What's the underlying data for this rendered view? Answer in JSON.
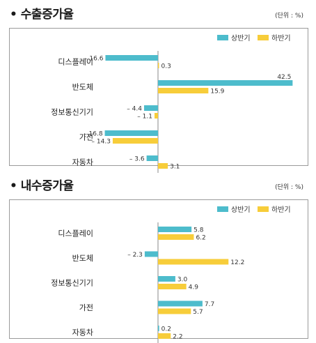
{
  "chart_data": [
    {
      "type": "bar",
      "orientation": "horizontal",
      "title": "• 수출증가율",
      "unit": "(단위 : %)",
      "categories": [
        "디스플레이",
        "반도체",
        "정보통신기기",
        "가전",
        "자동차"
      ],
      "series": [
        {
          "name": "상반기",
          "color": "#4dbccc",
          "values": [
            -16.6,
            42.5,
            -4.4,
            -16.8,
            -3.6
          ],
          "labels": [
            "– 16.6",
            "42.5",
            "– 4.4",
            "– 16.8",
            "– 3.6"
          ]
        },
        {
          "name": "하반기",
          "color": "#f7cd3a",
          "values": [
            0.3,
            15.9,
            -1.1,
            -14.3,
            3.1
          ],
          "labels": [
            "0.3",
            "15.9",
            "– 1.1",
            "– 14.3",
            "3.1"
          ]
        }
      ],
      "legend": "top-right",
      "grid": false
    },
    {
      "type": "bar",
      "orientation": "horizontal",
      "title": "• 내수증가율",
      "unit": "(단위 : %)",
      "categories": [
        "디스플레이",
        "반도체",
        "정보통신기기",
        "가전",
        "자동차"
      ],
      "series": [
        {
          "name": "상반기",
          "color": "#4dbccc",
          "values": [
            5.8,
            -2.3,
            3.0,
            7.7,
            0.2
          ],
          "labels": [
            "5.8",
            "– 2.3",
            "3.0",
            "7.7",
            "0.2"
          ]
        },
        {
          "name": "하반기",
          "color": "#f7cd3a",
          "values": [
            6.2,
            12.2,
            4.9,
            5.7,
            2.2
          ],
          "labels": [
            "6.2",
            "12.2",
            "4.9",
            "5.7",
            "2.2"
          ]
        }
      ],
      "legend": "top-right",
      "grid": false
    }
  ]
}
